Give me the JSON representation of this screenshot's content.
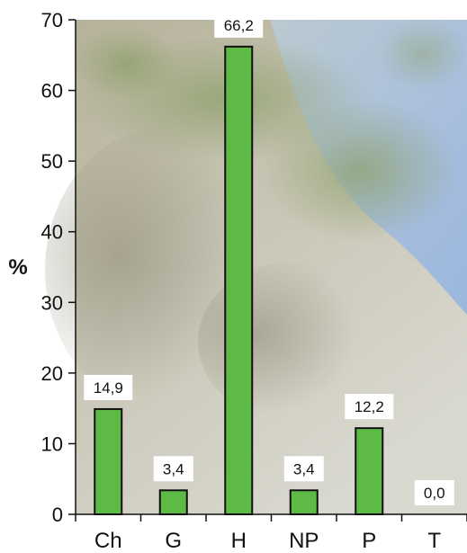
{
  "chart_data": {
    "type": "bar",
    "categories": [
      "Ch",
      "G",
      "H",
      "NP",
      "P",
      "T"
    ],
    "values": [
      14.9,
      3.4,
      66.2,
      3.4,
      12.2,
      0.0
    ],
    "data_labels": [
      "14,9",
      "3,4",
      "66,2",
      "3,4",
      "12,2",
      "0,0"
    ],
    "title": "",
    "xlabel": "",
    "ylabel": "%",
    "ylim": [
      0,
      70
    ],
    "yticks": [
      0,
      10,
      20,
      30,
      40,
      50,
      60,
      70
    ],
    "grid": false,
    "legend": "none",
    "background": "photograph of a rocky limestone slope with shrubs under blue sky",
    "colors": {
      "bar_fill": "#5dbb45",
      "bar_stroke": "#111111",
      "axis": "#111111",
      "label_box": "#ffffff"
    }
  }
}
